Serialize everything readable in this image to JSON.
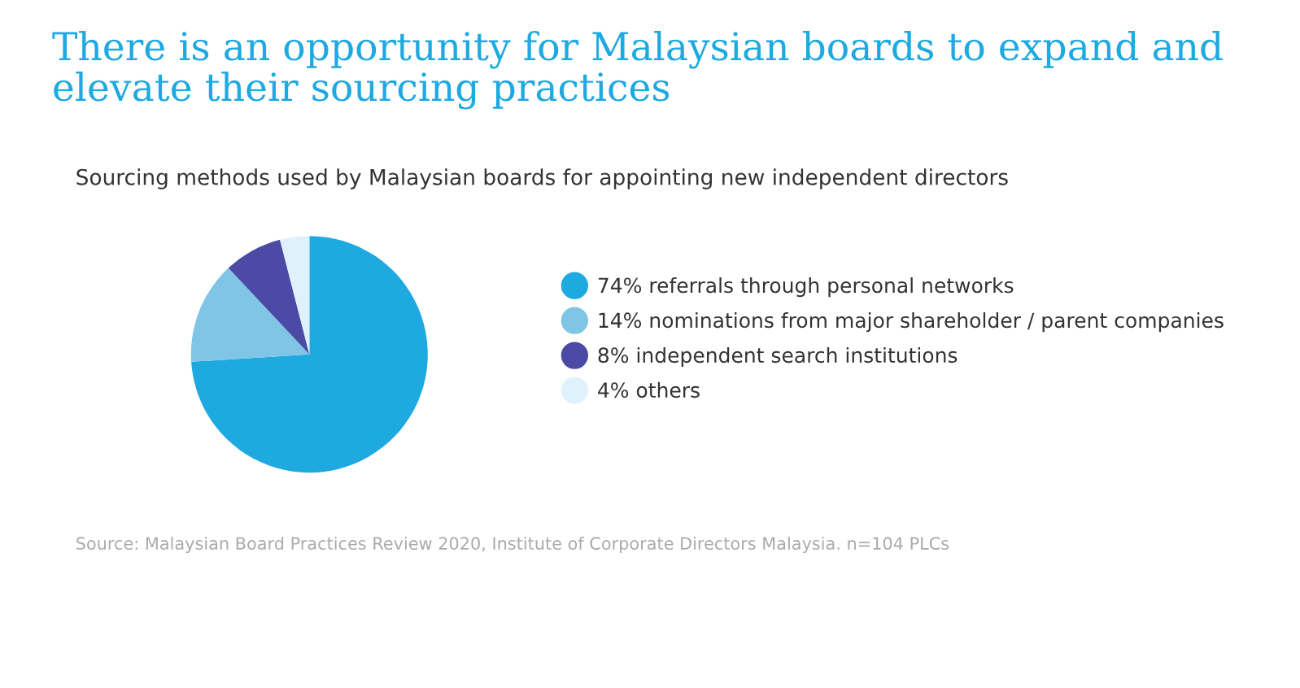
{
  "chart_data": {
    "type": "pie",
    "title": "There is an opportunity for Malaysian boards to expand and elevate their sourcing practices",
    "subtitle": "Sourcing methods used by Malaysian boards for appointing new independent directors",
    "categories": [
      "referrals through personal networks",
      "nominations from major shareholder / parent companies",
      "independent search institutions",
      "others"
    ],
    "values": [
      74,
      14,
      8,
      4
    ],
    "value_labels": [
      "74%",
      "14%",
      "8%",
      "4%"
    ],
    "colors": [
      "#1ea9e1",
      "#7ec5e6",
      "#4b4ba6",
      "#dff1fb"
    ],
    "legend": "right",
    "annotations": [
      "Source: Malaysian Board Practices Review 2020, Institute of Corporate Directors Malaysia. n=104 PLCs"
    ]
  }
}
